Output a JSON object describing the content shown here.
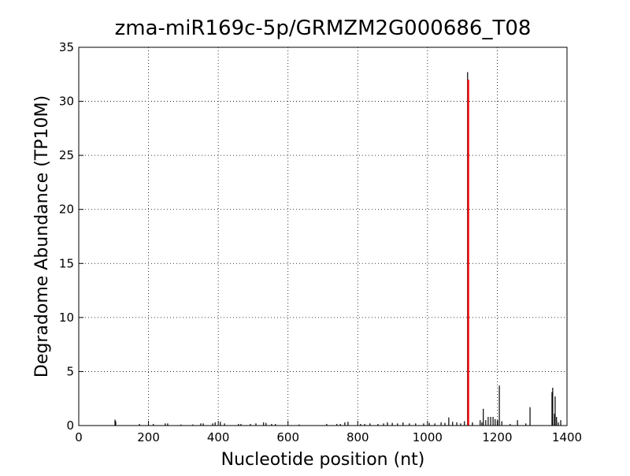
{
  "chart_data": {
    "type": "stem",
    "title": "zma-miR169c-5p/GRMZM2G000686_T08",
    "x_label": "Nucleotide position (nt)",
    "y_label": "Degradome Abundance (TP10M)",
    "xlim": [
      0,
      1400
    ],
    "xticks": [
      0,
      200,
      400,
      600,
      800,
      1000,
      1200,
      1400
    ],
    "ylim": [
      0,
      35
    ],
    "yticks": [
      0,
      5,
      10,
      15,
      20,
      25,
      30,
      35
    ],
    "grid": true,
    "series": [
      {
        "color": "#000000",
        "x": [
          104,
          106,
          174,
          214,
          248,
          255,
          293,
          327,
          350,
          357,
          384,
          391,
          406,
          418,
          458,
          465,
          492,
          508,
          530,
          537,
          553,
          564,
          632,
          711,
          740,
          750,
          763,
          772,
          808,
          820,
          835,
          858,
          874,
          885,
          899,
          914,
          930,
          948,
          966,
          989,
          1005,
          1021,
          1039,
          1050,
          1061,
          1072,
          1084,
          1095,
          1106,
          1115,
          1129,
          1151,
          1156,
          1160,
          1167,
          1174,
          1181,
          1188,
          1194,
          1201,
          1206,
          1213,
          1237,
          1258,
          1282,
          1294,
          1357,
          1359,
          1364,
          1366,
          1370,
          1375,
          1382
        ],
        "values": [
          0.55,
          0.4,
          0.15,
          0.15,
          0.2,
          0.2,
          0.1,
          0.1,
          0.2,
          0.2,
          0.2,
          0.3,
          0.35,
          0.2,
          0.15,
          0.15,
          0.15,
          0.2,
          0.3,
          0.25,
          0.15,
          0.15,
          0.1,
          0.15,
          0.15,
          0.15,
          0.3,
          0.35,
          0.15,
          0.15,
          0.2,
          0.15,
          0.2,
          0.3,
          0.25,
          0.2,
          0.3,
          0.2,
          0.2,
          0.2,
          0.25,
          0.2,
          0.3,
          0.25,
          0.75,
          0.35,
          0.3,
          0.2,
          0.4,
          32.7,
          0.3,
          0.5,
          0.3,
          1.55,
          0.5,
          0.8,
          0.8,
          0.8,
          0.6,
          0.5,
          3.7,
          0.4,
          0.15,
          0.5,
          0.2,
          1.7,
          3.1,
          3.5,
          1.1,
          2.7,
          0.8,
          0.3,
          0.5
        ]
      },
      {
        "color": "#ff0000",
        "x": [
          1117
        ],
        "values": [
          32
        ]
      }
    ]
  }
}
